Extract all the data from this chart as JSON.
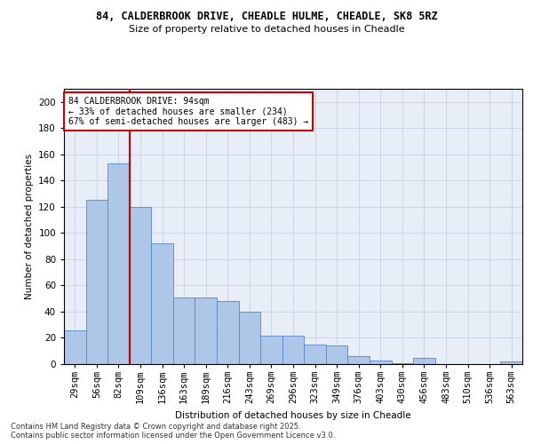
{
  "title_line1": "84, CALDERBROOK DRIVE, CHEADLE HULME, CHEADLE, SK8 5RZ",
  "title_line2": "Size of property relative to detached houses in Cheadle",
  "xlabel": "Distribution of detached houses by size in Cheadle",
  "ylabel": "Number of detached properties",
  "categories": [
    "29sqm",
    "56sqm",
    "82sqm",
    "109sqm",
    "136sqm",
    "163sqm",
    "189sqm",
    "216sqm",
    "243sqm",
    "269sqm",
    "296sqm",
    "323sqm",
    "349sqm",
    "376sqm",
    "403sqm",
    "430sqm",
    "456sqm",
    "483sqm",
    "510sqm",
    "536sqm",
    "563sqm"
  ],
  "values": [
    26,
    125,
    153,
    120,
    92,
    51,
    51,
    48,
    40,
    22,
    22,
    15,
    14,
    6,
    3,
    1,
    5,
    0,
    0,
    0,
    2
  ],
  "bar_color": "#aec6e8",
  "bar_edge_color": "#5585c8",
  "bar_linewidth": 0.6,
  "vline_color": "#cc0000",
  "annotation_text": "84 CALDERBROOK DRIVE: 94sqm\n← 33% of detached houses are smaller (234)\n67% of semi-detached houses are larger (483) →",
  "annotation_box_color": "#cc0000",
  "annotation_fontsize": 7.0,
  "ylim": [
    0,
    210
  ],
  "yticks": [
    0,
    20,
    40,
    60,
    80,
    100,
    120,
    140,
    160,
    180,
    200
  ],
  "grid_color": "#c8d0e0",
  "background_color": "#e8eef8",
  "footer_line1": "Contains HM Land Registry data © Crown copyright and database right 2025.",
  "footer_line2": "Contains public sector information licensed under the Open Government Licence v3.0.",
  "footer_fontsize": 6.0
}
